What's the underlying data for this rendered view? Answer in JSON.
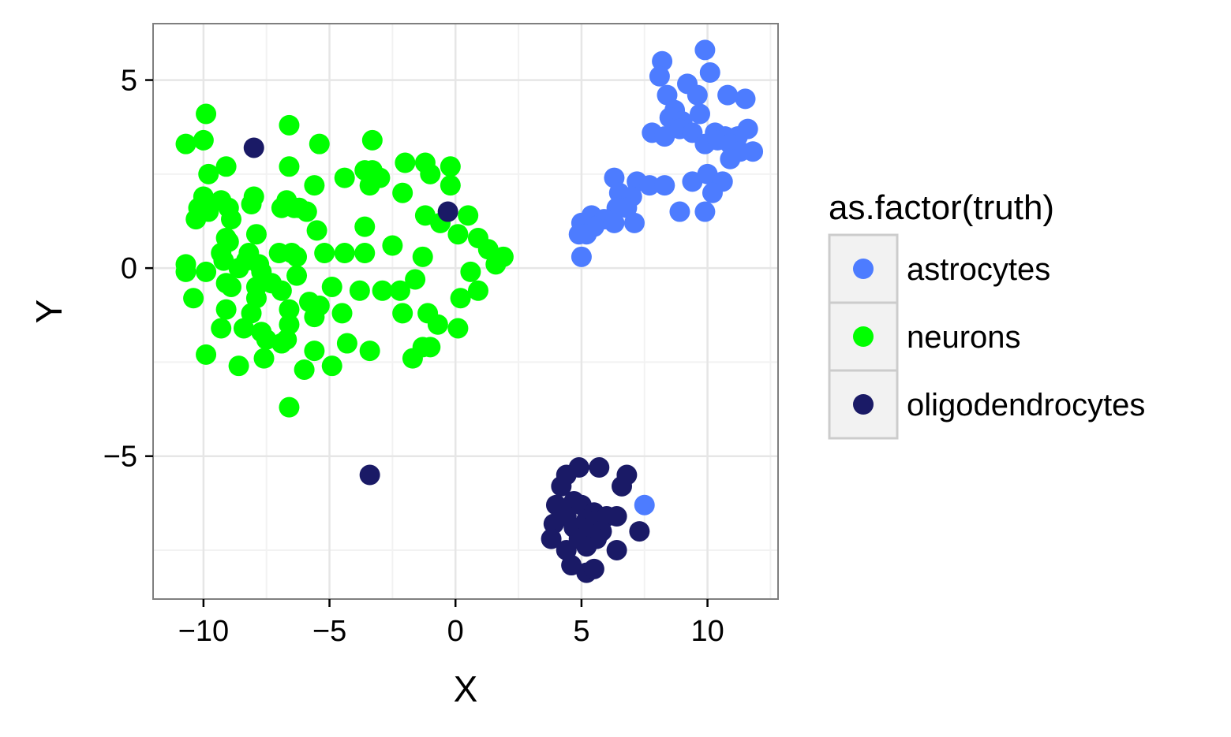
{
  "chart_data": {
    "type": "scatter",
    "xlabel": "X",
    "ylabel": "Y",
    "xlim": [
      -12,
      12.8
    ],
    "ylim": [
      -8.8,
      6.5
    ],
    "x_ticks": [
      -10,
      -5,
      0,
      5,
      10
    ],
    "y_ticks": [
      -5,
      0,
      5
    ],
    "x_tick_labels": [
      "−10",
      "−5",
      "0",
      "5",
      "10"
    ],
    "y_tick_labels": [
      "−5",
      "0",
      "5"
    ],
    "grid": true,
    "legend": {
      "title": "as.factor(truth)",
      "position": "right"
    },
    "series": [
      {
        "name": "astrocytes",
        "color": "#4d7cff",
        "points": [
          [
            9.9,
            5.8
          ],
          [
            8.2,
            5.5
          ],
          [
            8.1,
            5.1
          ],
          [
            10.1,
            5.2
          ],
          [
            9.2,
            4.9
          ],
          [
            8.4,
            4.6
          ],
          [
            9.6,
            4.6
          ],
          [
            10.8,
            4.6
          ],
          [
            11.5,
            4.5
          ],
          [
            8.7,
            4.2
          ],
          [
            8.5,
            4.0
          ],
          [
            9.7,
            4.1
          ],
          [
            9.0,
            3.9
          ],
          [
            8.9,
            3.7
          ],
          [
            9.4,
            3.6
          ],
          [
            10.3,
            3.6
          ],
          [
            10.7,
            3.5
          ],
          [
            11.2,
            3.5
          ],
          [
            11.6,
            3.7
          ],
          [
            7.8,
            3.6
          ],
          [
            8.3,
            3.5
          ],
          [
            9.9,
            3.3
          ],
          [
            10.4,
            3.4
          ],
          [
            10.9,
            3.3
          ],
          [
            11.3,
            3.1
          ],
          [
            11.8,
            3.1
          ],
          [
            10.9,
            2.9
          ],
          [
            6.3,
            2.4
          ],
          [
            7.2,
            2.3
          ],
          [
            7.7,
            2.2
          ],
          [
            8.3,
            2.2
          ],
          [
            9.4,
            2.3
          ],
          [
            10.0,
            2.5
          ],
          [
            10.6,
            2.3
          ],
          [
            10.2,
            2.0
          ],
          [
            6.5,
            2.0
          ],
          [
            7.0,
            1.9
          ],
          [
            6.8,
            1.6
          ],
          [
            6.4,
            1.6
          ],
          [
            5.4,
            1.4
          ],
          [
            5.9,
            1.3
          ],
          [
            5.0,
            1.2
          ],
          [
            5.5,
            1.1
          ],
          [
            6.3,
            1.2
          ],
          [
            7.1,
            1.2
          ],
          [
            5.2,
            0.9
          ],
          [
            4.9,
            0.9
          ],
          [
            5.0,
            0.3
          ],
          [
            8.9,
            1.5
          ],
          [
            9.9,
            1.5
          ],
          [
            7.5,
            -6.3
          ]
        ]
      },
      {
        "name": "neurons",
        "color": "#00ff00",
        "points": [
          [
            -9.9,
            4.1
          ],
          [
            -10.7,
            3.3
          ],
          [
            -10.0,
            3.4
          ],
          [
            -6.6,
            3.8
          ],
          [
            -5.4,
            3.3
          ],
          [
            -3.3,
            3.4
          ],
          [
            -9.8,
            2.5
          ],
          [
            -9.1,
            2.7
          ],
          [
            -6.6,
            2.7
          ],
          [
            -4.4,
            2.4
          ],
          [
            -3.6,
            2.6
          ],
          [
            -3.3,
            2.6
          ],
          [
            -3.0,
            2.4
          ],
          [
            -2.0,
            2.8
          ],
          [
            -1.2,
            2.8
          ],
          [
            -1.0,
            2.5
          ],
          [
            -0.2,
            2.7
          ],
          [
            -5.6,
            2.2
          ],
          [
            -3.4,
            2.2
          ],
          [
            -2.1,
            2.0
          ],
          [
            -0.2,
            2.2
          ],
          [
            -10.0,
            1.9
          ],
          [
            -9.3,
            1.8
          ],
          [
            -8.0,
            1.9
          ],
          [
            -8.1,
            1.7
          ],
          [
            -6.7,
            1.8
          ],
          [
            -6.4,
            1.6
          ],
          [
            -5.9,
            1.5
          ],
          [
            -10.2,
            1.6
          ],
          [
            -9.8,
            1.5
          ],
          [
            -9.0,
            1.6
          ],
          [
            -6.9,
            1.6
          ],
          [
            -6.2,
            1.6
          ],
          [
            -1.2,
            1.4
          ],
          [
            -0.6,
            1.2
          ],
          [
            0.5,
            1.4
          ],
          [
            -10.3,
            1.3
          ],
          [
            -8.9,
            1.3
          ],
          [
            -5.5,
            1.0
          ],
          [
            -3.6,
            1.1
          ],
          [
            -9.1,
            0.8
          ],
          [
            -9.0,
            0.7
          ],
          [
            -7.9,
            0.9
          ],
          [
            -2.5,
            0.6
          ],
          [
            0.1,
            0.9
          ],
          [
            0.9,
            0.8
          ],
          [
            1.3,
            0.5
          ],
          [
            -9.3,
            0.4
          ],
          [
            -9.2,
            0.2
          ],
          [
            -8.2,
            0.4
          ],
          [
            -7.8,
            0.1
          ],
          [
            -7.0,
            0.4
          ],
          [
            -6.5,
            0.4
          ],
          [
            -6.3,
            0.3
          ],
          [
            -5.2,
            0.4
          ],
          [
            -4.4,
            0.4
          ],
          [
            -3.6,
            0.4
          ],
          [
            -1.3,
            0.3
          ],
          [
            1.9,
            0.3
          ],
          [
            -10.7,
            0.1
          ],
          [
            -10.7,
            -0.1
          ],
          [
            -9.9,
            -0.1
          ],
          [
            -8.6,
            0.0
          ],
          [
            -8.3,
            0.2
          ],
          [
            -7.7,
            -0.1
          ],
          [
            -6.3,
            -0.2
          ],
          [
            1.6,
            0.1
          ],
          [
            0.6,
            -0.1
          ],
          [
            -9.1,
            -0.4
          ],
          [
            -8.9,
            -0.5
          ],
          [
            -7.9,
            -0.5
          ],
          [
            -7.3,
            -0.4
          ],
          [
            -6.9,
            -0.6
          ],
          [
            -4.9,
            -0.5
          ],
          [
            -3.8,
            -0.6
          ],
          [
            -2.9,
            -0.6
          ],
          [
            -2.2,
            -0.6
          ],
          [
            -1.6,
            -0.3
          ],
          [
            -10.4,
            -0.8
          ],
          [
            -7.9,
            -0.8
          ],
          [
            0.2,
            -0.8
          ],
          [
            0.9,
            -0.6
          ],
          [
            -5.8,
            -0.9
          ],
          [
            -5.4,
            -1.0
          ],
          [
            -9.1,
            -1.1
          ],
          [
            -8.1,
            -1.2
          ],
          [
            -6.6,
            -1.1
          ],
          [
            -5.6,
            -1.3
          ],
          [
            -4.5,
            -1.2
          ],
          [
            -2.1,
            -1.2
          ],
          [
            -1.1,
            -1.2
          ],
          [
            -9.3,
            -1.6
          ],
          [
            -8.4,
            -1.6
          ],
          [
            -7.7,
            -1.7
          ],
          [
            -7.5,
            -1.9
          ],
          [
            -6.6,
            -1.5
          ],
          [
            -6.7,
            -1.9
          ],
          [
            -6.9,
            -2.0
          ],
          [
            -5.6,
            -2.2
          ],
          [
            -4.3,
            -2.0
          ],
          [
            -3.4,
            -2.2
          ],
          [
            -1.0,
            -2.1
          ],
          [
            -0.7,
            -1.5
          ],
          [
            0.1,
            -1.6
          ],
          [
            -9.9,
            -2.3
          ],
          [
            -7.6,
            -2.4
          ],
          [
            -6.0,
            -2.7
          ],
          [
            -8.6,
            -2.6
          ],
          [
            -4.9,
            -2.6
          ],
          [
            -1.7,
            -2.4
          ],
          [
            -1.3,
            -2.1
          ],
          [
            -6.6,
            -3.7
          ]
        ]
      },
      {
        "name": "oligodendrocytes",
        "color": "#1a1a66",
        "points": [
          [
            -8.0,
            3.2
          ],
          [
            -0.3,
            1.5
          ],
          [
            -3.4,
            -5.5
          ],
          [
            4.9,
            -5.3
          ],
          [
            5.7,
            -5.3
          ],
          [
            4.4,
            -5.5
          ],
          [
            6.8,
            -5.5
          ],
          [
            4.2,
            -5.8
          ],
          [
            6.6,
            -5.8
          ],
          [
            4.0,
            -6.3
          ],
          [
            4.7,
            -6.2
          ],
          [
            5.0,
            -6.3
          ],
          [
            5.5,
            -6.5
          ],
          [
            6.0,
            -6.6
          ],
          [
            4.4,
            -6.6
          ],
          [
            5.2,
            -6.7
          ],
          [
            6.4,
            -6.6
          ],
          [
            3.9,
            -6.8
          ],
          [
            4.7,
            -6.9
          ],
          [
            5.3,
            -6.9
          ],
          [
            5.8,
            -7.0
          ],
          [
            7.3,
            -7.0
          ],
          [
            3.8,
            -7.2
          ],
          [
            4.9,
            -7.2
          ],
          [
            5.6,
            -7.2
          ],
          [
            5.2,
            -7.4
          ],
          [
            4.4,
            -7.5
          ],
          [
            6.4,
            -7.5
          ],
          [
            4.6,
            -7.9
          ],
          [
            5.2,
            -8.1
          ],
          [
            5.5,
            -8.0
          ]
        ]
      }
    ]
  }
}
